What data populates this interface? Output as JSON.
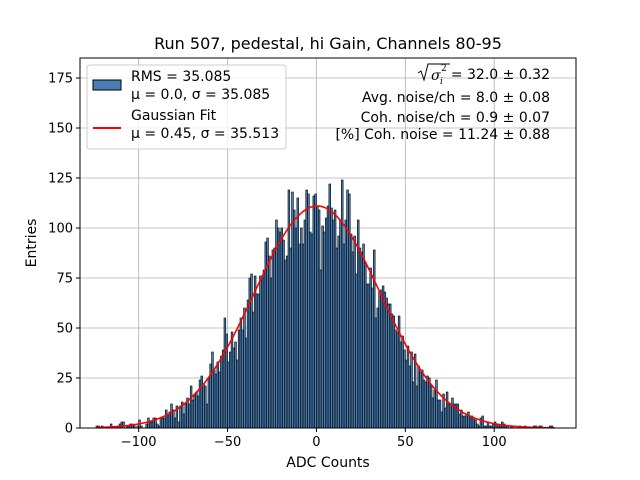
{
  "chart_data": {
    "type": "bar",
    "title": "Run 507, pedestal, hi Gain, Channels 80-95",
    "xlabel": "ADC Counts",
    "ylabel": "Entries",
    "xlim": [
      -133,
      146
    ],
    "ylim": [
      0,
      185
    ],
    "xticks": [
      -100,
      -50,
      0,
      50,
      100
    ],
    "xtick_labels": [
      "−100",
      "−50",
      "0",
      "50",
      "100"
    ],
    "yticks": [
      0,
      25,
      50,
      75,
      100,
      125,
      150,
      175
    ],
    "ytick_labels": [
      "0",
      "25",
      "50",
      "75",
      "100",
      "125",
      "150",
      "175"
    ],
    "grid": true,
    "legend_position": "top-left",
    "bin_width": 1,
    "bin_edges": [
      -124,
      134
    ],
    "histogram": {
      "name_line1": "RMS = 35.085",
      "name_line2": "μ = 0.0, σ = 35.085",
      "rms": 35.085,
      "mean": 0.0,
      "sigma": 35.085,
      "color": "#4a7fb5",
      "edge_color": "#000000"
    },
    "fit": {
      "name_line1": "Gaussian Fit",
      "name_line2": "μ = 0.45, σ = 35.513",
      "mu": 0.45,
      "sigma": 35.513,
      "amplitude": 111,
      "color": "#ff0000"
    },
    "stats": {
      "line1_suffix": "= 32.0 ± 0.32",
      "line2": "Avg. noise/ch = 8.0 ± 0.08",
      "line3": "Coh. noise/ch = 0.9 ± 0.07",
      "line4": "[%] Coh. noise = 11.24 ± 0.88"
    }
  }
}
